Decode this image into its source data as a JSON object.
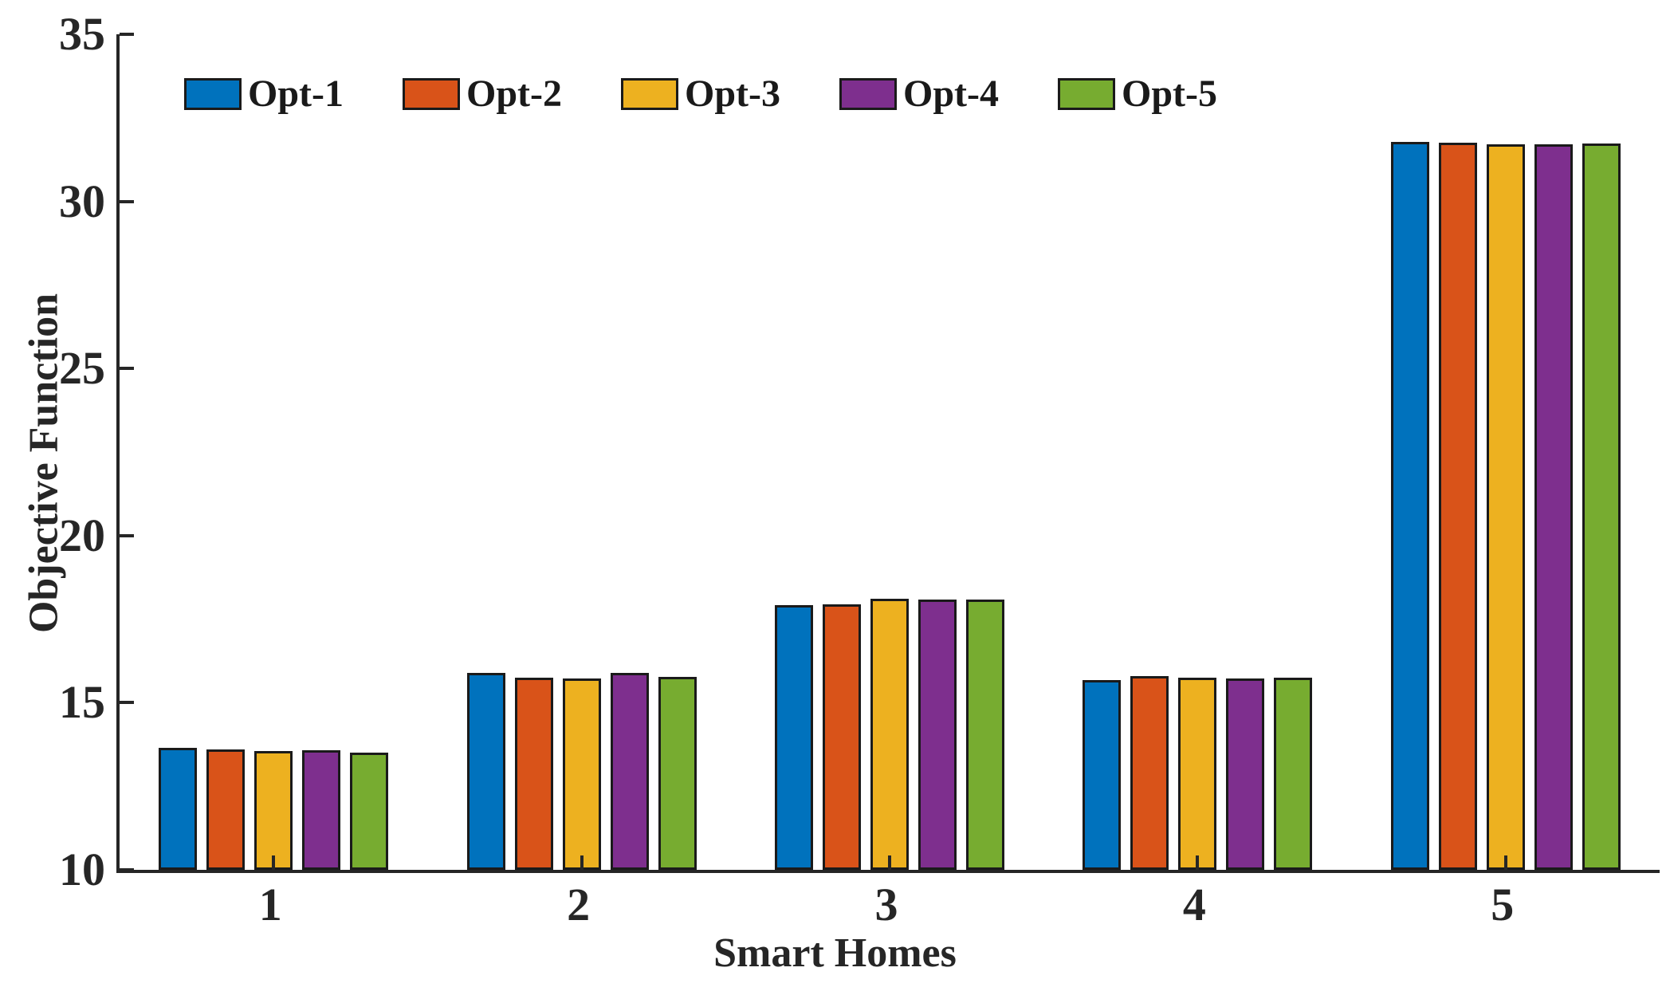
{
  "chart_data": {
    "type": "bar",
    "title": "",
    "xlabel": "Smart Homes",
    "ylabel": "Objective Function",
    "categories": [
      "1",
      "2",
      "3",
      "4",
      "5"
    ],
    "series": [
      {
        "name": "Opt-1",
        "color": "#0072BD",
        "values": [
          13.65,
          15.89,
          17.93,
          15.68,
          31.78
        ]
      },
      {
        "name": "Opt-2",
        "color": "#D95319",
        "values": [
          13.6,
          15.76,
          17.94,
          15.8,
          31.76
        ]
      },
      {
        "name": "Opt-3",
        "color": "#EDB120",
        "values": [
          13.56,
          15.72,
          18.12,
          15.76,
          31.7
        ]
      },
      {
        "name": "Opt-4",
        "color": "#7E2F8E",
        "values": [
          13.57,
          15.9,
          18.08,
          15.72,
          31.7
        ]
      },
      {
        "name": "Opt-5",
        "color": "#77AC30",
        "values": [
          13.51,
          15.78,
          18.08,
          15.76,
          31.74
        ]
      }
    ],
    "ylim": [
      10,
      35
    ],
    "yticks": [
      10,
      15,
      20,
      25,
      30,
      35
    ],
    "legend_position": "top-horizontal",
    "grid": false,
    "axis_color": "#262626",
    "bar_edge_color": "#1a1a1a",
    "background_color": "#ffffff"
  }
}
